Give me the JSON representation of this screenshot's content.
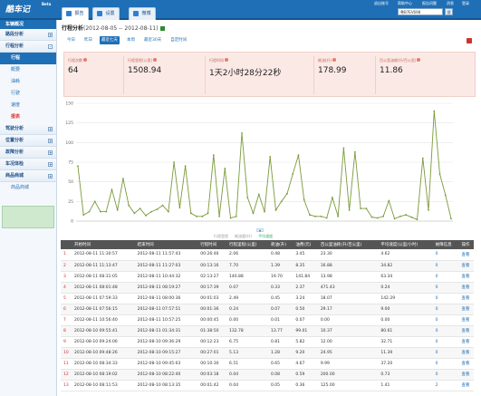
{
  "app": {
    "logo": "酷车记",
    "beta": "Beta"
  },
  "nav": {
    "tabs": [
      "报告",
      "设置",
      "微博"
    ]
  },
  "topright": {
    "user": "退出账号",
    "help": "帮助中心",
    "links": [
      "报告问题",
      "消息",
      "登录"
    ],
    "search_value": "粤B7EV698",
    "search_btn": "搜"
  },
  "sidebar": {
    "title": "车辆概况",
    "sections": [
      {
        "label": "路段分析",
        "pm": "+"
      },
      {
        "label": "行程分析",
        "pm": "-",
        "subs": [
          "行程",
          "概要",
          "油耗",
          "行驶",
          "速度",
          "报表"
        ]
      },
      {
        "label": "驾驶分析",
        "pm": "+"
      },
      {
        "label": "位置分析",
        "pm": "+"
      },
      {
        "label": "故障分析",
        "pm": "+"
      },
      {
        "label": "车况体检",
        "pm": "+"
      },
      {
        "label": "商品商城",
        "pm": "+",
        "subs": [
          "商品商城"
        ]
      }
    ]
  },
  "page": {
    "title": "行程分析",
    "range": "(2012-08-05 -- 2012-08-11)"
  },
  "filters": [
    "今日",
    "昨日",
    "最近七天",
    "本周",
    "最近30天",
    "自定时间"
  ],
  "filters_active": 2,
  "stats": [
    {
      "label": "行程次数",
      "value": "64"
    },
    {
      "label": "行程里程(公里)",
      "value": "1508.94"
    },
    {
      "label": "行程时间",
      "value": "1天2小时28分22秒"
    },
    {
      "label": "耗油(升)",
      "value": "178.99"
    },
    {
      "label": "百公里油耗(升/百公里)",
      "value": "11.86"
    }
  ],
  "legend": [
    "行程里程",
    "耗油量(升)",
    "平均速度"
  ],
  "chart_data": {
    "type": "line",
    "ylim": [
      0,
      150
    ],
    "yticks": [
      0,
      25,
      50,
      75,
      100,
      125,
      150
    ],
    "series": [
      {
        "name": "平均速度",
        "color": "#7a9a3a",
        "values": [
          70,
          8,
          12,
          25,
          12,
          12,
          40,
          14,
          54,
          20,
          10,
          16,
          7,
          12,
          15,
          20,
          12,
          75,
          17,
          70,
          10,
          6,
          6,
          10,
          84,
          6,
          67,
          4,
          6,
          112,
          30,
          10,
          34,
          12,
          82,
          14,
          25,
          35,
          60,
          84,
          27,
          8,
          6,
          6,
          4,
          30,
          6,
          93,
          14,
          88,
          16,
          16,
          5,
          4,
          6,
          26,
          3,
          6,
          8,
          5,
          2,
          80,
          14,
          140,
          60,
          33,
          3
        ]
      }
    ]
  },
  "table": {
    "headers": [
      "",
      "开始时间",
      "结束时间",
      "行程时间",
      "行程里程(公里)",
      "耗油(升)",
      "油费(元)",
      "百公里油耗(升/百公里)",
      "平均速度(公里/小时)",
      "故障信息",
      "操作"
    ],
    "rows": [
      [
        "1",
        "2012-08-11 11:30:57",
        "2012-08-11 11:57:43",
        "00:26:46",
        "2.06",
        "0.48",
        "3.45",
        "23.30",
        "4.62",
        "0",
        "查看"
      ],
      [
        "2",
        "2012-08-11 11:13:47",
        "2012-08-11 11:27:03",
        "00:13:16",
        "7.70",
        "1.39",
        "8.35",
        "16.88",
        "34.82",
        "0",
        "查看"
      ],
      [
        "3",
        "2012-08-11 08:31:05",
        "2012-08-11 10:44:32",
        "02:13:27",
        "140.88",
        "19.70",
        "141.84",
        "13.98",
        "63.34",
        "0",
        "查看"
      ],
      [
        "4",
        "2012-08-11 08:01:48",
        "2012-08-11 08:19:27",
        "00:17:39",
        "0.07",
        "0.33",
        "2.37",
        "471.43",
        "0.24",
        "0",
        "查看"
      ],
      [
        "5",
        "2012-08-11 07:59:33",
        "2012-08-11 08:00:36",
        "00:01:03",
        "2.49",
        "0.45",
        "3.24",
        "18.07",
        "142.29",
        "0",
        "查看"
      ],
      [
        "6",
        "2012-08-11 07:56:15",
        "2012-08-11 07:57:51",
        "00:01:36",
        "0.24",
        "0.07",
        "0.50",
        "29.17",
        "9.00",
        "0",
        "查看"
      ],
      [
        "7",
        "2012-08-11 10:56:40",
        "2012-08-11 10:57:25",
        "00:00:45",
        "0.00",
        "0.01",
        "0.07",
        "0.00",
        "0.00",
        "0",
        "查看"
      ],
      [
        "8",
        "2012-08-10 09:55:41",
        "2012-08-11 01:34:31",
        "01:38:50",
        "132.78",
        "13.77",
        "99.01",
        "10.37",
        "80.61",
        "0",
        "查看"
      ],
      [
        "9",
        "2012-08-10 09:24:06",
        "2012-08-10 09:36:29",
        "00:12:23",
        "6.75",
        "0.81",
        "5.82",
        "12.00",
        "32.71",
        "0",
        "查看"
      ],
      [
        "10",
        "2012-08-10 09:48:26",
        "2012-08-10 09:15:27",
        "00:27:01",
        "5.13",
        "1.28",
        "9.20",
        "24.95",
        "11.39",
        "0",
        "查看"
      ],
      [
        "11",
        "2012-08-10 08:34:33",
        "2012-08-10 09:45:03",
        "00:10:30",
        "6.51",
        "0.65",
        "4.67",
        "9.99",
        "37.20",
        "0",
        "查看"
      ],
      [
        "12",
        "2012-08-10 08:19:02",
        "2012-08-10 08:22:40",
        "00:03:18",
        "0.04",
        "0.08",
        "0.59",
        "200.00",
        "0.73",
        "0",
        "查看"
      ],
      [
        "13",
        "2012-08-10 08:11:53",
        "2012-08-10 08:13:35",
        "00:01:42",
        "0.04",
        "0.05",
        "0.36",
        "125.00",
        "1.41",
        "2",
        "查看"
      ]
    ]
  }
}
